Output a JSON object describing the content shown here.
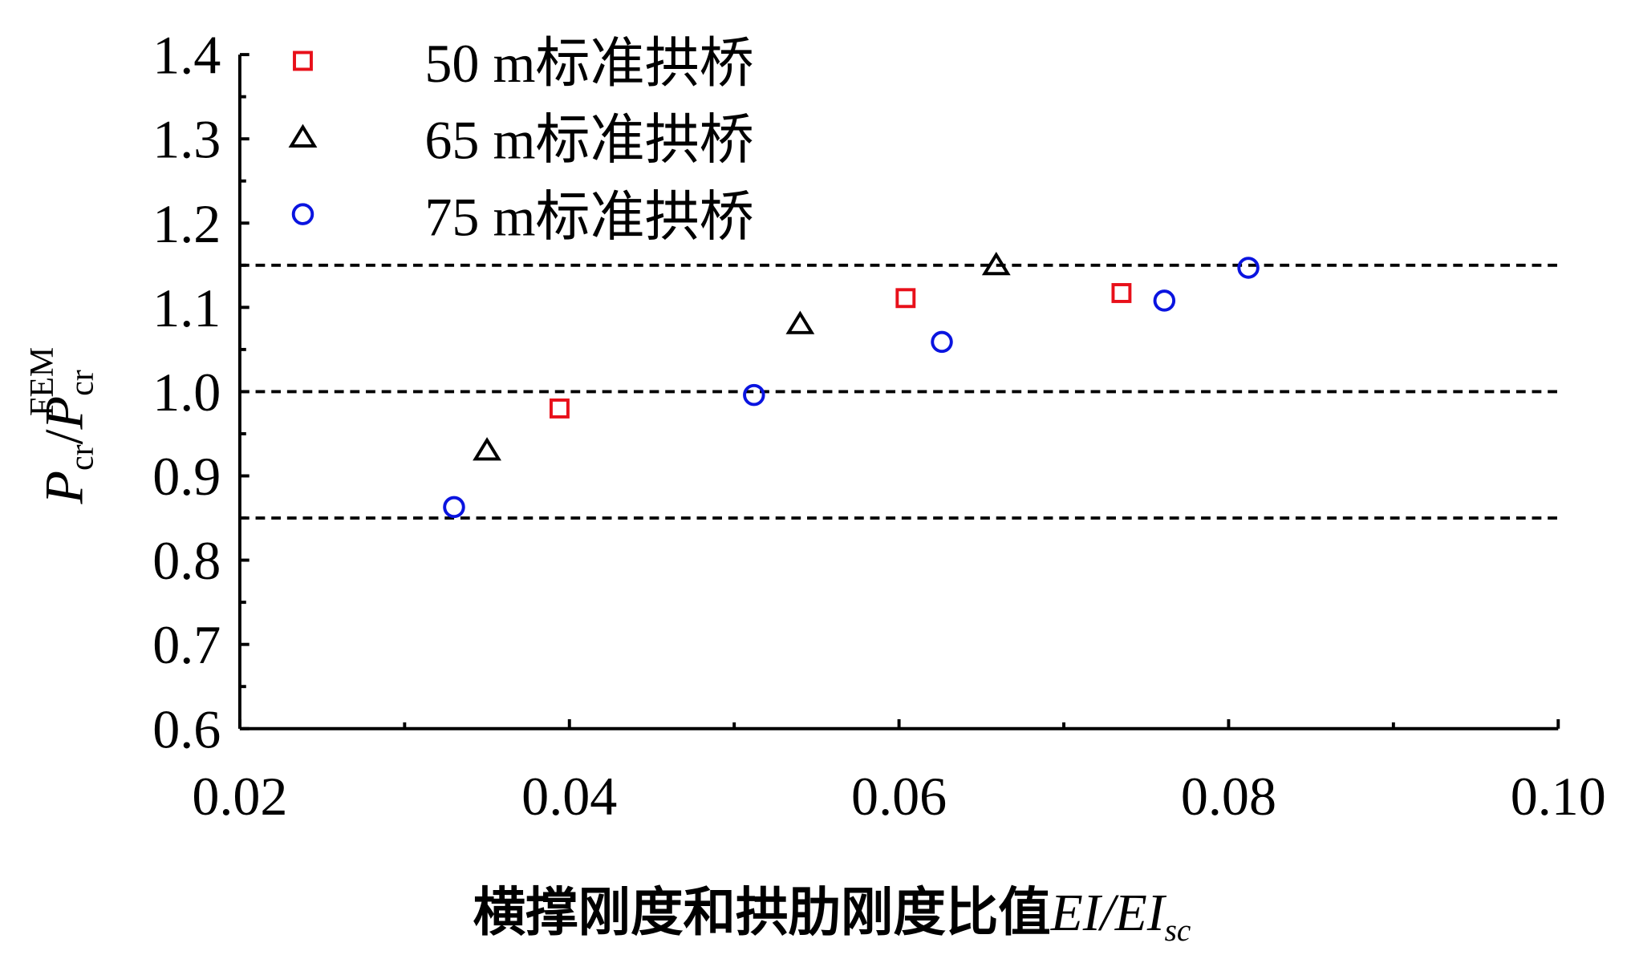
{
  "chart_data": {
    "type": "scatter",
    "title": "",
    "xlabel": "横撑刚度和拱肋刚度比值EI/EI_sc",
    "xlabel_parts": {
      "cn": "横撑刚度和拱肋刚度比值",
      "main": "EI/EI",
      "sub": "sc"
    },
    "ylabel": "P_cr/P_cr^FEM",
    "ylabel_parts": {
      "p1": "P",
      "sub1": "cr",
      "slash": "/",
      "p2": "P",
      "sub2": "cr",
      "sup2": "FEM"
    },
    "xlim": [
      0.02,
      0.1
    ],
    "ylim": [
      0.6,
      1.4
    ],
    "xticks": [
      "0.02",
      "0.04",
      "0.06",
      "0.08",
      "0.10"
    ],
    "yticks": [
      "0.6",
      "0.7",
      "0.8",
      "0.9",
      "1.0",
      "1.1",
      "1.2",
      "1.3",
      "1.4"
    ],
    "reference_lines": [
      0.85,
      1.0,
      1.15
    ],
    "legend_position": "top-left",
    "series": [
      {
        "name": "50 m标准拱桥",
        "marker": "square",
        "color": "#e8101a",
        "x": [
          0.0394,
          0.0604,
          0.0735
        ],
        "y": [
          0.98,
          1.111,
          1.117
        ]
      },
      {
        "name": "65 m标准拱桥",
        "marker": "triangle",
        "color": "#000000",
        "x": [
          0.035,
          0.054,
          0.0659
        ],
        "y": [
          0.93,
          1.08,
          1.15
        ]
      },
      {
        "name": "75 m标准拱桥",
        "marker": "circle",
        "color": "#0a14e0",
        "x": [
          0.033,
          0.0512,
          0.0626,
          0.0761,
          0.0812
        ],
        "y": [
          0.863,
          0.996,
          1.059,
          1.108,
          1.147
        ]
      }
    ]
  }
}
